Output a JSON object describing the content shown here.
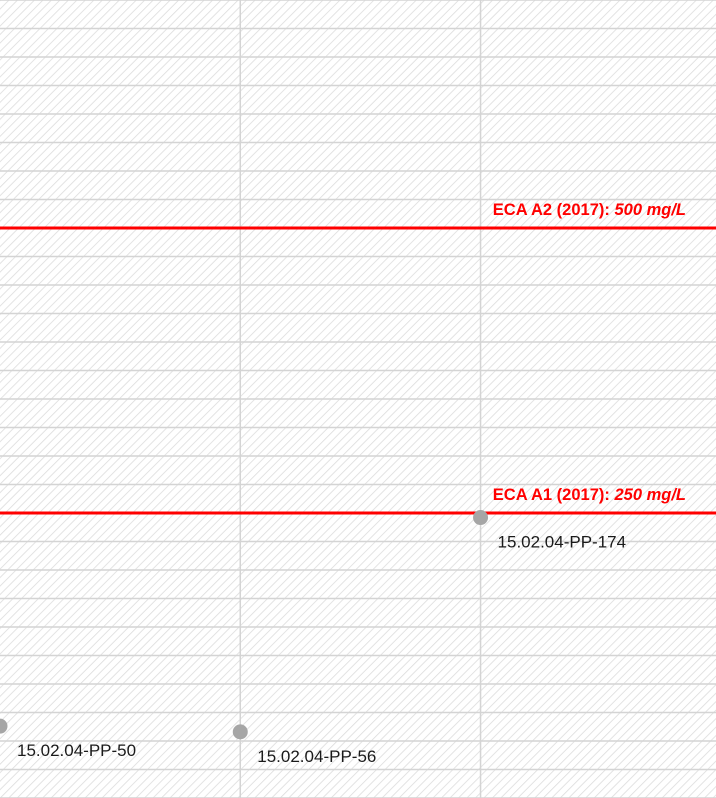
{
  "chart_data": {
    "type": "scatter",
    "series": [
      {
        "color": "#a6a6a6",
        "x": [
          0,
          1,
          2
        ],
        "values": [
          63,
          58,
          246
        ],
        "point_labels": [
          "15.02.04-PP-50",
          "15.02.04-PP-56",
          "15.02.04-PP-174"
        ]
      }
    ],
    "xlim": [
      0,
      2.98
    ],
    "xticks": [
      1,
      2
    ],
    "ylim": [
      0,
      700
    ],
    "yticks": [
      0,
      25,
      50,
      75,
      100,
      125,
      150,
      175,
      200,
      225,
      250,
      275,
      300,
      325,
      350,
      375,
      400,
      425,
      450,
      475,
      500,
      525,
      550,
      575,
      600,
      625,
      650,
      675,
      700
    ],
    "grid": true,
    "reference_lines": [
      {
        "name": "ECA A2 (2017):",
        "value": 500,
        "value_label": "500 mg/L",
        "color": "#ff0000"
      },
      {
        "name": "ECA A1 (2017):",
        "value": 250,
        "value_label": "250 mg/L",
        "color": "#ff0000"
      }
    ]
  }
}
